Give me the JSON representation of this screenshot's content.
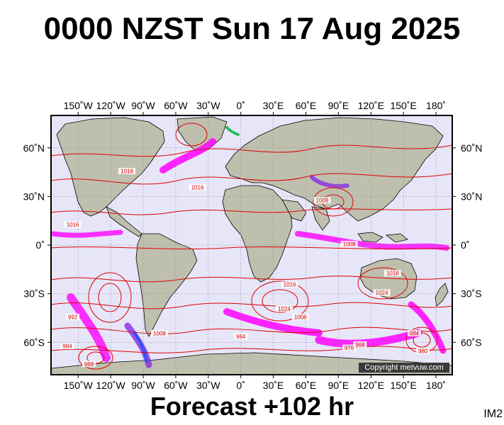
{
  "title": "0000 NZST Sun 17 Aug 2025",
  "footer": "Forecast +102 hr",
  "corner_label": "IM2",
  "copyright": "Copyright metvuw.com",
  "axes": {
    "longitude_labels": [
      "150˚W",
      "120˚W",
      "90˚W",
      "60˚W",
      "30˚W",
      "0˚",
      "30˚E",
      "60˚E",
      "90˚E",
      "120˚E",
      "150˚E",
      "180˚"
    ],
    "longitude_values": [
      -150,
      -120,
      -90,
      -60,
      -30,
      0,
      30,
      60,
      90,
      120,
      150,
      180
    ],
    "latitude_labels": [
      "60˚N",
      "30˚N",
      "0˚",
      "30˚S",
      "60˚S"
    ],
    "latitude_values": [
      60,
      30,
      0,
      -30,
      -60
    ],
    "lon_range": [
      -175,
      195
    ],
    "lat_range": [
      -80,
      80
    ]
  },
  "isobar_labels": [
    {
      "text": "1016",
      "lon": -105,
      "lat": 45
    },
    {
      "text": "1016",
      "lon": -40,
      "lat": 35
    },
    {
      "text": "1016",
      "lon": -155,
      "lat": 12
    },
    {
      "text": "1008",
      "lon": 75,
      "lat": 27
    },
    {
      "text": "1008",
      "lon": 100,
      "lat": 0
    },
    {
      "text": "1016",
      "lon": 45,
      "lat": -25
    },
    {
      "text": "1024",
      "lon": 130,
      "lat": -30
    },
    {
      "text": "1016",
      "lon": 140,
      "lat": -18
    },
    {
      "text": "1024",
      "lon": 40,
      "lat": -40
    },
    {
      "text": "1008",
      "lon": 55,
      "lat": -45
    },
    {
      "text": "992",
      "lon": -155,
      "lat": -45
    },
    {
      "text": "984",
      "lon": -160,
      "lat": -63
    },
    {
      "text": "968",
      "lon": -140,
      "lat": -74
    },
    {
      "text": "1008",
      "lon": -75,
      "lat": -55
    },
    {
      "text": "984",
      "lon": 0,
      "lat": -57
    },
    {
      "text": "976",
      "lon": 100,
      "lat": -64
    },
    {
      "text": "968",
      "lon": 110,
      "lat": -62
    },
    {
      "text": "984",
      "lon": 160,
      "lat": -55
    },
    {
      "text": "980",
      "lon": 168,
      "lat": -66
    }
  ],
  "colors": {
    "ocean": "#e6e6f8",
    "land": "#bfbfae",
    "isobar": "#e00000",
    "precip_magenta": "#ff00ff",
    "precip_violet": "#8a2be2",
    "precip_blue": "#3050ff",
    "precip_green": "#2ab85a"
  }
}
